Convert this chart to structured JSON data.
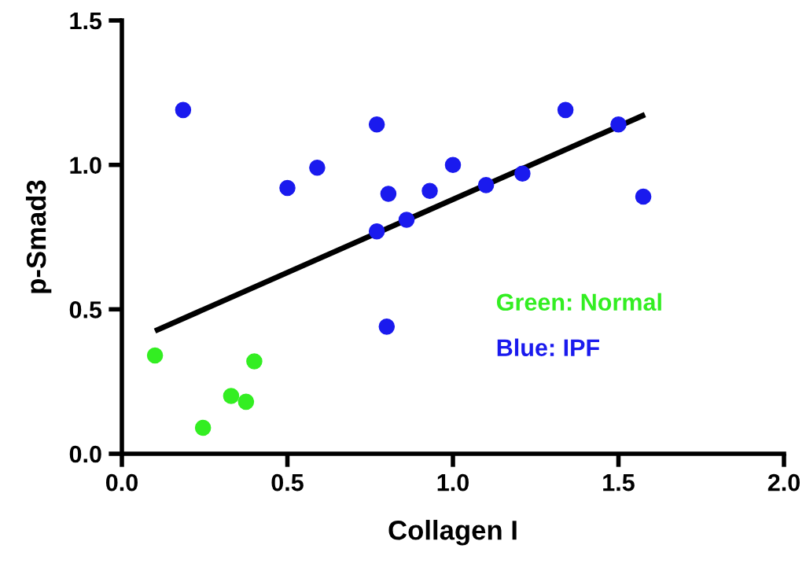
{
  "chart_data": {
    "type": "scatter",
    "xlabel": "Collagen I",
    "ylabel": "p-Smad3",
    "xlim": [
      0,
      2
    ],
    "ylim": [
      0,
      1.5
    ],
    "xticks": [
      {
        "value": 0,
        "label": "0.0"
      },
      0.5,
      {
        "value": 1,
        "label": "1.0"
      },
      1.5,
      {
        "value": 2,
        "label": "2.0"
      }
    ],
    "yticks": [
      {
        "value": 0,
        "label": "0.0"
      },
      0.5,
      {
        "value": 1,
        "label": "1.0"
      },
      1.5
    ],
    "grid": false,
    "legend": false,
    "series": [
      {
        "name": "Green: Normal",
        "color": "#33ee22",
        "marker": "circle",
        "x": [
          0.1,
          0.245,
          0.33,
          0.375,
          0.4
        ],
        "values": [
          0.34,
          0.09,
          0.2,
          0.18,
          0.32
        ]
      },
      {
        "name": "Blue: IPF",
        "color": "#1a1aee",
        "marker": "circle",
        "x": [
          0.185,
          0.5,
          0.59,
          0.77,
          0.77,
          0.8,
          0.805,
          0.86,
          0.93,
          1.0,
          1.1,
          1.21,
          1.34,
          1.5,
          1.575
        ],
        "values": [
          1.19,
          0.92,
          0.99,
          1.14,
          0.77,
          0.44,
          0.9,
          0.81,
          0.91,
          1.0,
          0.93,
          0.97,
          1.19,
          1.14,
          0.89
        ]
      },
      {
        "type": "line",
        "color": "#000000",
        "marker": "none",
        "line_style": "solid",
        "x": [
          0.1,
          1.58
        ],
        "values": [
          0.425,
          1.174
        ]
      }
    ]
  }
}
